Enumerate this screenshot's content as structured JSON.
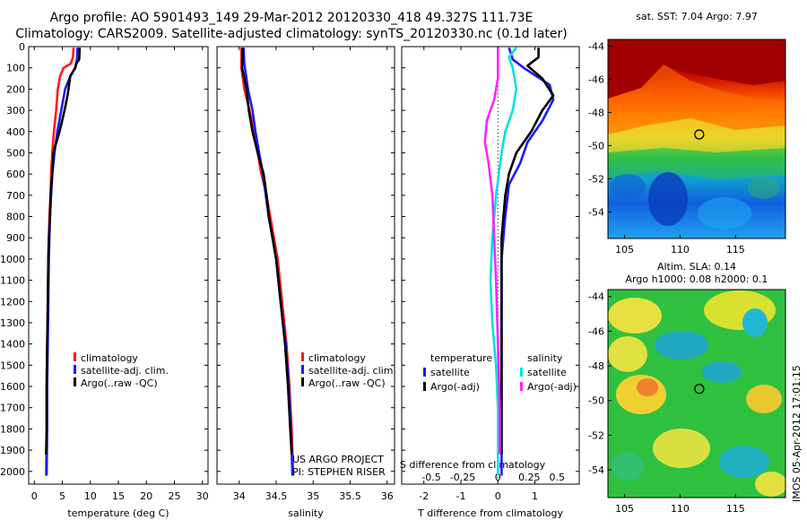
{
  "header": {
    "line1": "Argo profile: AO 5901493_149 29-Mar-2012 20120330_418 49.327S 111.73E",
    "line2": "Climatology: CARS2009. Satellite-adjusted climatology: synTS_20120330.nc (0.1d later)"
  },
  "depth_ticks": [
    0,
    100,
    200,
    300,
    400,
    500,
    600,
    700,
    800,
    900,
    1000,
    1100,
    1200,
    1300,
    1400,
    1500,
    1600,
    1700,
    1800,
    1900,
    2000
  ],
  "colors": {
    "climatology": "#ff1a1a",
    "satellite": "#1a1aff",
    "argo": "#000000",
    "s_satellite": "#00e0e0",
    "s_argo": "#ff22ff"
  },
  "chart_data": [
    {
      "type": "line",
      "xlabel": "temperature (deg C)",
      "xlim": [
        -1,
        31
      ],
      "xticks": [
        0,
        5,
        10,
        15,
        20,
        25,
        30
      ],
      "ylim": [
        2060,
        0
      ],
      "legend": {
        "placement": "bottom-center",
        "entries": [
          "climatology",
          "satellite-adj. clim.",
          "Argo(..raw -QC)"
        ]
      },
      "series": [
        {
          "name": "climatology",
          "color": "#ff1a1a",
          "points": [
            [
              7.0,
              5
            ],
            [
              6.9,
              50
            ],
            [
              6.5,
              80
            ],
            [
              5.2,
              100
            ],
            [
              4.6,
              140
            ],
            [
              4.2,
              200
            ],
            [
              3.9,
              300
            ],
            [
              3.5,
              400
            ],
            [
              3.2,
              500
            ],
            [
              3.0,
              600
            ],
            [
              2.9,
              700
            ],
            [
              2.7,
              800
            ],
            [
              2.6,
              900
            ],
            [
              2.5,
              1000
            ],
            [
              2.4,
              1200
            ],
            [
              2.3,
              1400
            ],
            [
              2.2,
              1600
            ],
            [
              2.2,
              1800
            ],
            [
              2.1,
              2020
            ]
          ]
        },
        {
          "name": "satellite-adj. clim.",
          "color": "#1a1aff",
          "points": [
            [
              7.7,
              5
            ],
            [
              7.6,
              60
            ],
            [
              7.3,
              100
            ],
            [
              6.4,
              140
            ],
            [
              5.5,
              200
            ],
            [
              4.8,
              300
            ],
            [
              4.1,
              400
            ],
            [
              3.6,
              500
            ],
            [
              3.2,
              600
            ],
            [
              3.0,
              700
            ],
            [
              2.8,
              800
            ],
            [
              2.7,
              900
            ],
            [
              2.6,
              1000
            ],
            [
              2.5,
              1200
            ],
            [
              2.4,
              1400
            ],
            [
              2.3,
              1600
            ],
            [
              2.3,
              1800
            ],
            [
              2.2,
              2020
            ]
          ]
        },
        {
          "name": "Argo(..raw -QC)",
          "color": "#000000",
          "points": [
            [
              8.1,
              5
            ],
            [
              8.0,
              60
            ],
            [
              7.5,
              80
            ],
            [
              7.3,
              100
            ],
            [
              6.4,
              140
            ],
            [
              6.2,
              180
            ],
            [
              6.0,
              220
            ],
            [
              5.4,
              300
            ],
            [
              4.5,
              400
            ],
            [
              3.4,
              500
            ],
            [
              3.2,
              600
            ],
            [
              2.9,
              700
            ],
            [
              2.8,
              800
            ],
            [
              2.6,
              900
            ],
            [
              2.5,
              1000
            ],
            [
              2.4,
              1200
            ],
            [
              2.3,
              1400
            ],
            [
              2.2,
              1600
            ],
            [
              2.2,
              1800
            ],
            [
              2.1,
              1920
            ]
          ]
        }
      ]
    },
    {
      "type": "line",
      "xlabel": "salinity",
      "xlim": [
        33.7,
        36.1
      ],
      "xticks": [
        34,
        34.5,
        35,
        35.5,
        36
      ],
      "ylim": [
        2060,
        0
      ],
      "legend": {
        "placement": "bottom-right",
        "entries": [
          "climatology",
          "satellite-adj. clim.",
          "Argo(..raw -QC)"
        ]
      },
      "annotation": [
        "US ARGO PROJECT",
        "PI: STEPHEN RISER"
      ],
      "series": [
        {
          "name": "climatology",
          "color": "#ff1a1a",
          "points": [
            [
              34.03,
              5
            ],
            [
              34.03,
              100
            ],
            [
              34.07,
              200
            ],
            [
              34.14,
              300
            ],
            [
              34.2,
              400
            ],
            [
              34.25,
              500
            ],
            [
              34.3,
              600
            ],
            [
              34.37,
              700
            ],
            [
              34.42,
              800
            ],
            [
              34.47,
              900
            ],
            [
              34.52,
              1000
            ],
            [
              34.58,
              1200
            ],
            [
              34.64,
              1400
            ],
            [
              34.68,
              1600
            ],
            [
              34.71,
              1800
            ],
            [
              34.73,
              2020
            ]
          ]
        },
        {
          "name": "satellite-adj. clim.",
          "color": "#1a1aff",
          "points": [
            [
              34.06,
              5
            ],
            [
              34.07,
              80
            ],
            [
              34.12,
              200
            ],
            [
              34.18,
              300
            ],
            [
              34.22,
              400
            ],
            [
              34.27,
              500
            ],
            [
              34.32,
              600
            ],
            [
              34.36,
              700
            ],
            [
              34.4,
              800
            ],
            [
              34.45,
              900
            ],
            [
              34.5,
              1000
            ],
            [
              34.56,
              1200
            ],
            [
              34.63,
              1400
            ],
            [
              34.67,
              1600
            ],
            [
              34.7,
              1800
            ],
            [
              34.72,
              2020
            ]
          ]
        },
        {
          "name": "Argo(..raw -QC)",
          "color": "#000000",
          "points": [
            [
              34.05,
              5
            ],
            [
              34.04,
              100
            ],
            [
              34.1,
              200
            ],
            [
              34.13,
              300
            ],
            [
              34.18,
              400
            ],
            [
              34.25,
              500
            ],
            [
              34.33,
              600
            ],
            [
              34.37,
              700
            ],
            [
              34.4,
              800
            ],
            [
              34.45,
              900
            ],
            [
              34.5,
              1000
            ],
            [
              34.56,
              1200
            ],
            [
              34.62,
              1400
            ],
            [
              34.66,
              1600
            ],
            [
              34.69,
              1800
            ],
            [
              34.71,
              1920
            ]
          ]
        }
      ]
    },
    {
      "type": "line",
      "xlabel": "T difference from climatology",
      "xlabel_secondary": "S difference from climatology",
      "xlim": [
        -2.6,
        2.2
      ],
      "xticks": [
        -2,
        -1,
        0,
        1
      ],
      "secondary_xticks": [
        {
          "label": "-0.5",
          "at": -1.8
        },
        {
          "label": "-0.25",
          "at": -0.95
        },
        {
          "label": "0",
          "at": 0
        },
        {
          "label": "0.25",
          "at": 0.85
        },
        {
          "label": "0.5",
          "at": 1.6
        }
      ],
      "ylim": [
        2060,
        0
      ],
      "legend": {
        "placement": "bottom-center",
        "groups": [
          {
            "title": "temperature",
            "entries": [
              "satellite",
              "Argo(-adj)"
            ]
          },
          {
            "title": "salinity",
            "entries": [
              "satellite",
              "Argo(-adj)"
            ]
          }
        ]
      },
      "series": [
        {
          "name": "temperature satellite",
          "color": "#1a1aff",
          "points": [
            [
              0.3,
              5
            ],
            [
              0.4,
              60
            ],
            [
              0.7,
              100
            ],
            [
              1.4,
              180
            ],
            [
              1.5,
              250
            ],
            [
              1.2,
              350
            ],
            [
              0.8,
              450
            ],
            [
              0.6,
              550
            ],
            [
              0.3,
              650
            ],
            [
              0.2,
              800
            ],
            [
              0.1,
              1000
            ],
            [
              0.1,
              1300
            ],
            [
              0.1,
              1600
            ],
            [
              0.1,
              1900
            ],
            [
              0.1,
              2020
            ]
          ]
        },
        {
          "name": "temperature Argo(-adj)",
          "color": "#000000",
          "points": [
            [
              1.1,
              5
            ],
            [
              1.1,
              50
            ],
            [
              0.8,
              90
            ],
            [
              1.2,
              150
            ],
            [
              1.5,
              230
            ],
            [
              1.2,
              300
            ],
            [
              0.9,
              400
            ],
            [
              0.5,
              500
            ],
            [
              0.3,
              600
            ],
            [
              0.2,
              700
            ],
            [
              0.1,
              900
            ],
            [
              0.1,
              1200
            ],
            [
              0.1,
              1500
            ],
            [
              0.1,
              1800
            ],
            [
              0.1,
              1920
            ]
          ]
        },
        {
          "name": "salinity satellite",
          "color": "#00e0e0",
          "points": [
            [
              0.5,
              5
            ],
            [
              0.3,
              50
            ],
            [
              0.4,
              100
            ],
            [
              0.5,
              200
            ],
            [
              0.4,
              300
            ],
            [
              0.2,
              400
            ],
            [
              0.1,
              500
            ],
            [
              -0.05,
              700
            ],
            [
              -0.15,
              900
            ],
            [
              -0.2,
              1100
            ],
            [
              -0.15,
              1300
            ],
            [
              -0.05,
              1500
            ],
            [
              0.0,
              1700
            ],
            [
              0.0,
              2020
            ]
          ]
        },
        {
          "name": "salinity Argo(-adj)",
          "color": "#ff22ff",
          "points": [
            [
              0.0,
              5
            ],
            [
              0.0,
              150
            ],
            [
              -0.1,
              250
            ],
            [
              -0.3,
              350
            ],
            [
              -0.35,
              450
            ],
            [
              -0.25,
              550
            ],
            [
              -0.15,
              700
            ],
            [
              -0.1,
              900
            ],
            [
              -0.05,
              1100
            ],
            [
              0.0,
              1400
            ],
            [
              0.05,
              1700
            ],
            [
              0.05,
              1920
            ]
          ]
        }
      ]
    },
    {
      "type": "heatmap",
      "title": "sat. SST: 7.04 Argo: 7.97",
      "xlim": [
        103.5,
        119.5
      ],
      "ylim": [
        -55.6,
        -43.6
      ],
      "xticks": [
        105,
        110,
        115
      ],
      "yticks": [
        -44,
        -46,
        -48,
        -50,
        -52,
        -54
      ],
      "marker": {
        "lon": 111.73,
        "lat": -49.327
      }
    },
    {
      "type": "heatmap",
      "title": "Altim. SLA: 0.14",
      "subtitle": "Argo h1000: 0.08 h2000: 0.1",
      "xlim": [
        103.5,
        119.5
      ],
      "ylim": [
        -55.6,
        -43.6
      ],
      "xticks": [
        105,
        110,
        115
      ],
      "yticks": [
        -44,
        -46,
        -48,
        -50,
        -52,
        -54
      ],
      "marker": {
        "lon": 111.73,
        "lat": -49.327
      }
    }
  ],
  "footer": {
    "stamp": "IMOS 05-Apr-2012 17:01:15"
  }
}
